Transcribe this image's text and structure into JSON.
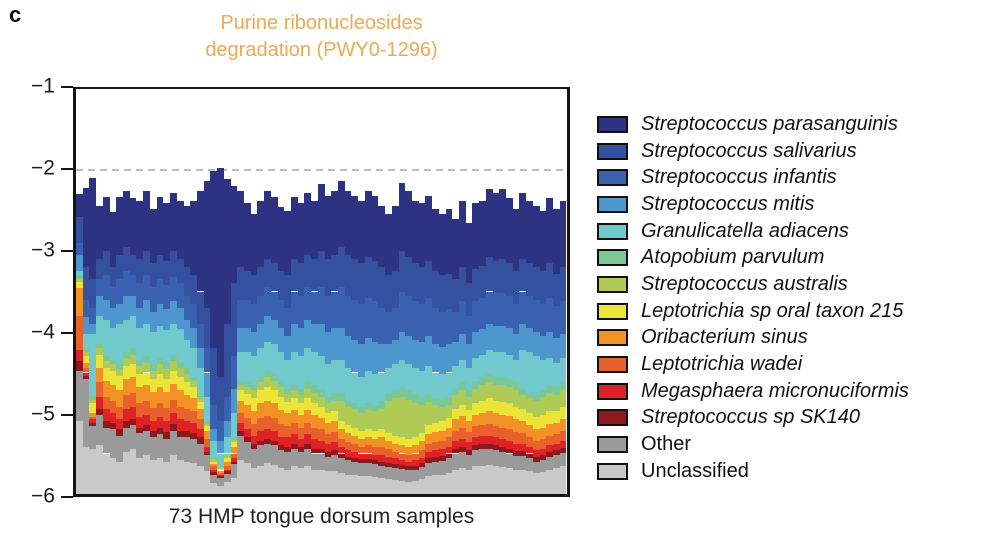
{
  "panel_label": "c",
  "title": {
    "line1": "Purine ribonucleosides",
    "line2": "degradation (PWY0-1296)",
    "color": "#F0A952"
  },
  "xlabel": "73 HMP tongue dorsum samples",
  "chart_data": {
    "type": "bar",
    "stacked": true,
    "title": "Purine ribonucleosides degradation (PWY0-1296)",
    "xlabel": "73 HMP tongue dorsum samples",
    "ylabel": "",
    "ylim": [
      -6,
      -1
    ],
    "yticks": [
      -1,
      -2,
      -3,
      -4,
      -5,
      -6
    ],
    "ytick_labels": [
      "−1",
      "−2",
      "−3",
      "−4",
      "−5",
      "−6"
    ],
    "grid": false,
    "reference_line_y": -2,
    "legend_position": "right",
    "n_samples": 73,
    "series": [
      {
        "name": "Streptococcus parasanguinis",
        "color": "#2D3282",
        "italic": true
      },
      {
        "name": "Streptococcus salivarius",
        "color": "#33519E",
        "italic": true
      },
      {
        "name": "Streptococcus infantis",
        "color": "#3A61AF",
        "italic": true
      },
      {
        "name": "Streptococcus mitis",
        "color": "#4E96CE",
        "italic": true
      },
      {
        "name": "Granulicatella adiacens",
        "color": "#6FC9CD",
        "italic": true
      },
      {
        "name": "Atopobium parvulum",
        "color": "#7BC795",
        "italic": true
      },
      {
        "name": "Streptococcus australis",
        "color": "#AFCA55",
        "italic": true
      },
      {
        "name": "Leptotrichia sp oral taxon 215",
        "color": "#EDE438",
        "italic": true
      },
      {
        "name": "Oribacterium sinus",
        "color": "#F29126",
        "italic": true
      },
      {
        "name": "Leptotrichia wadei",
        "color": "#E8612C",
        "italic": true
      },
      {
        "name": "Megasphaera micronuciformis",
        "color": "#DE2228",
        "italic": true
      },
      {
        "name": "Streptococcus sp SK140",
        "color": "#8E191C",
        "italic": true
      },
      {
        "name": "Other",
        "color": "#9A9A9A",
        "italic": false
      },
      {
        "name": "Unclassified",
        "color": "#C9C9C9",
        "italic": false
      }
    ],
    "samples_bounds_desc": "Per sample: [bar top (log10 abundance), then cumulative lower boundary of each of the first 13 series in legend order]; the 14th series (Unclassified) extends from the last boundary down to -6.",
    "samples": [
      [
        -2.3,
        -2.58,
        -2.9,
        -3.05,
        -3.25,
        -3.3,
        -3.34,
        -3.38,
        -3.46,
        -3.8,
        -4.22,
        -4.36,
        -4.48,
        -5.1
      ],
      [
        -2.22,
        -3.2,
        -3.6,
        -3.82,
        -4.02,
        -4.2,
        -4.25,
        -4.3,
        -4.38,
        -4.45,
        -4.5,
        -4.54,
        -4.58,
        -5.42
      ],
      [
        -2.1,
        -3.35,
        -3.7,
        -3.9,
        -4.02,
        -4.79,
        -4.84,
        -4.88,
        -5.0,
        -5.05,
        -5.08,
        -5.12,
        -5.16,
        -5.45
      ],
      [
        -2.44,
        -3.1,
        -3.35,
        -3.55,
        -3.8,
        -4.15,
        -4.2,
        -4.28,
        -4.45,
        -4.62,
        -4.8,
        -4.95,
        -5.02,
        -5.4
      ],
      [
        -2.33,
        -3.0,
        -3.3,
        -3.6,
        -3.85,
        -4.3,
        -4.36,
        -4.44,
        -4.6,
        -4.8,
        -4.95,
        -5.1,
        -5.18,
        -5.5
      ],
      [
        -2.52,
        -3.2,
        -3.45,
        -3.7,
        -3.95,
        -4.35,
        -4.4,
        -4.48,
        -4.65,
        -4.85,
        -5.0,
        -5.12,
        -5.2,
        -5.55
      ],
      [
        -2.33,
        -3.05,
        -3.35,
        -3.65,
        -3.9,
        -4.4,
        -4.46,
        -4.54,
        -4.72,
        -4.92,
        -5.08,
        -5.2,
        -5.28,
        -5.6
      ],
      [
        -2.26,
        -2.95,
        -3.25,
        -3.55,
        -3.85,
        -4.25,
        -4.32,
        -4.42,
        -4.58,
        -4.78,
        -4.95,
        -5.1,
        -5.18,
        -5.48
      ],
      [
        -2.34,
        -3.05,
        -3.3,
        -3.55,
        -3.8,
        -4.2,
        -4.28,
        -4.4,
        -4.55,
        -4.75,
        -4.92,
        -5.08,
        -5.15,
        -5.45
      ],
      [
        -2.38,
        -3.1,
        -3.4,
        -3.7,
        -3.95,
        -4.35,
        -4.42,
        -4.52,
        -4.68,
        -4.88,
        -5.05,
        -5.18,
        -5.25,
        -5.55
      ],
      [
        -2.26,
        -3.0,
        -3.3,
        -3.6,
        -3.9,
        -4.3,
        -4.38,
        -4.5,
        -4.65,
        -4.85,
        -5.02,
        -5.15,
        -5.22,
        -5.52
      ],
      [
        -2.48,
        -3.15,
        -3.45,
        -3.75,
        -4.0,
        -4.4,
        -4.48,
        -4.58,
        -4.74,
        -4.94,
        -5.1,
        -5.22,
        -5.3,
        -5.58
      ],
      [
        -2.33,
        -3.05,
        -3.35,
        -3.65,
        -3.92,
        -4.32,
        -4.4,
        -4.52,
        -4.68,
        -4.88,
        -5.05,
        -5.18,
        -5.26,
        -5.55
      ],
      [
        -2.41,
        -3.12,
        -3.42,
        -3.72,
        -3.98,
        -4.38,
        -4.46,
        -4.58,
        -4.74,
        -4.94,
        -5.1,
        -5.24,
        -5.32,
        -5.6
      ],
      [
        -2.28,
        -3.0,
        -3.32,
        -3.62,
        -3.9,
        -4.28,
        -4.36,
        -4.48,
        -4.64,
        -4.84,
        -5.0,
        -5.14,
        -5.22,
        -5.52
      ],
      [
        -2.38,
        -3.1,
        -3.4,
        -3.7,
        -3.96,
        -4.36,
        -4.44,
        -4.56,
        -4.72,
        -4.92,
        -5.08,
        -5.22,
        -5.3,
        -5.58
      ],
      [
        -2.44,
        -3.2,
        -3.55,
        -3.85,
        -4.1,
        -4.45,
        -4.52,
        -4.62,
        -4.78,
        -4.95,
        -5.1,
        -5.22,
        -5.3,
        -5.6
      ],
      [
        -2.38,
        -3.3,
        -3.65,
        -3.95,
        -4.2,
        -4.55,
        -4.6,
        -4.68,
        -4.82,
        -4.98,
        -5.12,
        -5.25,
        -5.32,
        -5.62
      ],
      [
        -2.26,
        -3.5,
        -3.9,
        -4.2,
        -4.45,
        -4.75,
        -4.8,
        -4.86,
        -4.95,
        -5.08,
        -5.2,
        -5.3,
        -5.38,
        -5.65
      ],
      [
        -2.13,
        -3.7,
        -4.2,
        -4.5,
        -4.8,
        -5.1,
        -5.13,
        -5.16,
        -5.22,
        -5.32,
        -5.42,
        -5.48,
        -5.52,
        -5.72
      ],
      [
        -2.01,
        -4.2,
        -4.9,
        -5.2,
        -5.35,
        -5.55,
        -5.57,
        -5.6,
        -5.63,
        -5.66,
        -5.7,
        -5.73,
        -5.76,
        -5.86
      ],
      [
        -1.98,
        -4.55,
        -5.1,
        -5.35,
        -5.5,
        -5.65,
        -5.67,
        -5.69,
        -5.71,
        -5.74,
        -5.76,
        -5.78,
        -5.8,
        -5.9
      ],
      [
        -2.11,
        -3.9,
        -4.8,
        -5.1,
        -5.3,
        -5.5,
        -5.52,
        -5.55,
        -5.6,
        -5.65,
        -5.7,
        -5.72,
        -5.75,
        -5.85
      ],
      [
        -2.2,
        -3.4,
        -4.3,
        -4.7,
        -5.0,
        -5.3,
        -5.33,
        -5.36,
        -5.42,
        -5.5,
        -5.56,
        -5.6,
        -5.63,
        -5.8
      ],
      [
        -2.26,
        -3.2,
        -3.6,
        -3.95,
        -4.25,
        -4.6,
        -4.65,
        -4.72,
        -4.85,
        -5.0,
        -5.12,
        -5.22,
        -5.28,
        -5.58
      ],
      [
        -2.41,
        -3.25,
        -3.6,
        -3.95,
        -4.25,
        -4.62,
        -4.68,
        -4.76,
        -4.9,
        -5.06,
        -5.2,
        -5.3,
        -5.36,
        -5.62
      ],
      [
        -2.54,
        -3.3,
        -3.65,
        -4.0,
        -4.3,
        -4.65,
        -4.72,
        -4.82,
        -4.98,
        -5.14,
        -5.28,
        -5.38,
        -5.44,
        -5.68
      ],
      [
        -2.38,
        -3.2,
        -3.55,
        -3.9,
        -4.2,
        -4.55,
        -4.62,
        -4.72,
        -4.88,
        -5.06,
        -5.22,
        -5.34,
        -5.4,
        -5.65
      ],
      [
        -2.26,
        -3.1,
        -3.45,
        -3.8,
        -4.12,
        -4.48,
        -4.56,
        -4.68,
        -4.85,
        -5.04,
        -5.2,
        -5.32,
        -5.38,
        -5.62
      ],
      [
        -2.33,
        -3.15,
        -3.5,
        -3.85,
        -4.15,
        -4.52,
        -4.6,
        -4.72,
        -4.88,
        -5.06,
        -5.22,
        -5.34,
        -5.4,
        -5.64
      ],
      [
        -2.46,
        -3.25,
        -3.6,
        -3.95,
        -4.25,
        -4.6,
        -4.68,
        -4.8,
        -4.96,
        -5.14,
        -5.3,
        -5.4,
        -5.46,
        -5.68
      ],
      [
        -2.5,
        -3.3,
        -3.7,
        -4.05,
        -4.35,
        -4.7,
        -4.76,
        -4.86,
        -5.0,
        -5.16,
        -5.3,
        -5.42,
        -5.48,
        -5.7
      ],
      [
        -2.33,
        -3.1,
        -3.5,
        -3.9,
        -4.25,
        -4.65,
        -4.72,
        -4.82,
        -4.96,
        -5.12,
        -5.26,
        -5.38,
        -5.44,
        -5.66
      ],
      [
        -2.41,
        -3.15,
        -3.55,
        -3.95,
        -4.3,
        -4.7,
        -4.78,
        -4.88,
        -5.02,
        -5.18,
        -5.32,
        -5.42,
        -5.48,
        -5.68
      ],
      [
        -2.29,
        -3.05,
        -3.45,
        -3.85,
        -4.2,
        -4.6,
        -4.7,
        -4.82,
        -4.96,
        -5.12,
        -5.26,
        -5.38,
        -5.44,
        -5.66
      ],
      [
        -2.38,
        -3.1,
        -3.5,
        -3.9,
        -4.25,
        -4.65,
        -4.75,
        -4.88,
        -5.02,
        -5.18,
        -5.32,
        -5.44,
        -5.5,
        -5.7
      ],
      [
        -2.17,
        -3.0,
        -3.45,
        -3.9,
        -4.3,
        -4.7,
        -4.8,
        -4.92,
        -5.06,
        -5.2,
        -5.34,
        -5.44,
        -5.5,
        -5.7
      ],
      [
        -2.32,
        -3.1,
        -3.55,
        -4.0,
        -4.4,
        -4.8,
        -4.88,
        -5.0,
        -5.12,
        -5.26,
        -5.38,
        -5.48,
        -5.54,
        -5.72
      ],
      [
        -2.26,
        -3.05,
        -3.5,
        -3.95,
        -4.35,
        -4.75,
        -4.85,
        -4.98,
        -5.1,
        -5.24,
        -5.36,
        -5.46,
        -5.52,
        -5.72
      ],
      [
        -2.13,
        -2.95,
        -3.45,
        -3.95,
        -4.35,
        -4.75,
        -4.85,
        -5.1,
        -5.2,
        -5.32,
        -5.42,
        -5.5,
        -5.55,
        -5.74
      ],
      [
        -2.26,
        -3.05,
        -3.55,
        -4.05,
        -4.45,
        -4.85,
        -4.92,
        -5.15,
        -5.25,
        -5.36,
        -5.46,
        -5.54,
        -5.58,
        -5.76
      ],
      [
        -2.32,
        -3.1,
        -3.6,
        -4.1,
        -4.5,
        -4.88,
        -4.95,
        -5.18,
        -5.28,
        -5.38,
        -5.48,
        -5.55,
        -5.6,
        -5.77
      ],
      [
        -2.38,
        -3.15,
        -3.65,
        -4.15,
        -4.55,
        -4.92,
        -5.0,
        -5.22,
        -5.32,
        -5.42,
        -5.5,
        -5.57,
        -5.62,
        -5.78
      ],
      [
        -2.26,
        -3.08,
        -3.58,
        -4.08,
        -4.48,
        -4.88,
        -4.96,
        -5.2,
        -5.3,
        -5.4,
        -5.5,
        -5.57,
        -5.62,
        -5.78
      ],
      [
        -2.32,
        -3.12,
        -3.62,
        -4.12,
        -4.52,
        -4.9,
        -4.98,
        -5.22,
        -5.32,
        -5.42,
        -5.52,
        -5.58,
        -5.63,
        -5.79
      ],
      [
        -2.44,
        -3.2,
        -3.7,
        -4.15,
        -4.5,
        -4.85,
        -4.95,
        -5.2,
        -5.3,
        -5.42,
        -5.52,
        -5.6,
        -5.65,
        -5.8
      ],
      [
        -2.54,
        -3.3,
        -3.75,
        -4.15,
        -4.45,
        -4.75,
        -4.85,
        -5.25,
        -5.35,
        -5.45,
        -5.54,
        -5.62,
        -5.67,
        -5.82
      ],
      [
        -2.44,
        -3.25,
        -3.7,
        -4.1,
        -4.4,
        -4.7,
        -4.82,
        -5.28,
        -5.38,
        -5.48,
        -5.56,
        -5.63,
        -5.68,
        -5.83
      ],
      [
        -2.16,
        -3.0,
        -3.5,
        -4.0,
        -4.35,
        -4.68,
        -4.8,
        -5.3,
        -5.4,
        -5.5,
        -5.58,
        -5.64,
        -5.69,
        -5.84
      ],
      [
        -2.26,
        -3.08,
        -3.55,
        -4.05,
        -4.4,
        -4.72,
        -4.84,
        -5.32,
        -5.42,
        -5.52,
        -5.6,
        -5.66,
        -5.7,
        -5.85
      ],
      [
        -2.38,
        -3.15,
        -3.62,
        -4.1,
        -4.45,
        -4.76,
        -4.88,
        -5.3,
        -5.4,
        -5.5,
        -5.58,
        -5.65,
        -5.7,
        -5.84
      ],
      [
        -2.41,
        -3.2,
        -3.65,
        -4.12,
        -4.48,
        -4.8,
        -4.9,
        -5.25,
        -5.35,
        -5.46,
        -5.55,
        -5.62,
        -5.67,
        -5.82
      ],
      [
        -2.32,
        -3.12,
        -3.58,
        -4.05,
        -4.42,
        -4.76,
        -4.86,
        -5.15,
        -5.26,
        -5.38,
        -5.48,
        -5.56,
        -5.62,
        -5.78
      ],
      [
        -2.48,
        -3.25,
        -3.7,
        -4.15,
        -4.5,
        -4.82,
        -4.9,
        -5.12,
        -5.24,
        -5.36,
        -5.46,
        -5.54,
        -5.6,
        -5.77
      ],
      [
        -2.54,
        -3.3,
        -3.75,
        -4.18,
        -4.52,
        -4.84,
        -4.92,
        -5.1,
        -5.22,
        -5.34,
        -5.45,
        -5.53,
        -5.59,
        -5.76
      ],
      [
        -2.48,
        -3.28,
        -3.72,
        -4.15,
        -4.5,
        -4.82,
        -4.9,
        -5.06,
        -5.18,
        -5.3,
        -5.42,
        -5.5,
        -5.56,
        -5.74
      ],
      [
        -2.6,
        -3.35,
        -3.75,
        -4.12,
        -4.42,
        -4.7,
        -4.78,
        -4.95,
        -5.08,
        -5.22,
        -5.35,
        -5.44,
        -5.5,
        -5.7
      ],
      [
        -2.38,
        -3.2,
        -3.62,
        -4.02,
        -4.35,
        -4.62,
        -4.72,
        -4.9,
        -5.04,
        -5.18,
        -5.32,
        -5.42,
        -5.48,
        -5.68
      ],
      [
        -2.66,
        -3.4,
        -3.8,
        -4.15,
        -4.45,
        -4.72,
        -4.8,
        -4.96,
        -5.1,
        -5.24,
        -5.36,
        -5.46,
        -5.52,
        -5.7
      ],
      [
        -2.41,
        -3.22,
        -3.62,
        -4.0,
        -4.32,
        -4.6,
        -4.7,
        -4.88,
        -5.02,
        -5.16,
        -5.3,
        -5.4,
        -5.46,
        -5.66
      ],
      [
        -2.38,
        -3.18,
        -3.58,
        -3.96,
        -4.28,
        -4.56,
        -4.66,
        -4.85,
        -5.0,
        -5.15,
        -5.28,
        -5.38,
        -5.45,
        -5.65
      ],
      [
        -2.23,
        -3.08,
        -3.5,
        -3.9,
        -4.22,
        -4.52,
        -4.62,
        -4.82,
        -4.98,
        -5.14,
        -5.28,
        -5.38,
        -5.44,
        -5.64
      ],
      [
        -2.29,
        -3.12,
        -3.52,
        -3.92,
        -4.25,
        -4.55,
        -4.65,
        -4.85,
        -5.0,
        -5.16,
        -5.3,
        -5.4,
        -5.46,
        -5.66
      ],
      [
        -2.23,
        -3.1,
        -3.52,
        -3.92,
        -4.25,
        -4.55,
        -4.66,
        -4.86,
        -5.02,
        -5.18,
        -5.32,
        -5.42,
        -5.48,
        -5.67
      ],
      [
        -2.34,
        -3.15,
        -3.55,
        -3.95,
        -4.28,
        -4.58,
        -4.68,
        -4.88,
        -5.04,
        -5.2,
        -5.34,
        -5.44,
        -5.5,
        -5.68
      ],
      [
        -2.48,
        -3.25,
        -3.65,
        -4.02,
        -4.34,
        -4.62,
        -4.72,
        -4.92,
        -5.08,
        -5.24,
        -5.38,
        -5.47,
        -5.53,
        -5.7
      ],
      [
        -2.29,
        -3.1,
        -3.5,
        -3.9,
        -4.22,
        -4.7,
        -4.78,
        -4.95,
        -5.1,
        -5.25,
        -5.38,
        -5.47,
        -5.53,
        -5.7
      ],
      [
        -2.38,
        -3.15,
        -3.55,
        -3.95,
        -4.25,
        -4.75,
        -4.82,
        -5.0,
        -5.15,
        -5.3,
        -5.42,
        -5.5,
        -5.56,
        -5.72
      ],
      [
        -2.44,
        -3.2,
        -3.6,
        -4.0,
        -4.3,
        -4.78,
        -4.85,
        -5.05,
        -5.2,
        -5.34,
        -5.46,
        -5.54,
        -5.6,
        -5.74
      ],
      [
        -2.5,
        -3.25,
        -3.65,
        -4.05,
        -4.35,
        -4.72,
        -4.8,
        -5.02,
        -5.18,
        -5.32,
        -5.44,
        -5.52,
        -5.58,
        -5.73
      ],
      [
        -2.34,
        -3.15,
        -3.58,
        -4.0,
        -4.32,
        -4.65,
        -4.75,
        -4.98,
        -5.14,
        -5.28,
        -5.4,
        -5.48,
        -5.54,
        -5.7
      ],
      [
        -2.48,
        -3.28,
        -3.68,
        -4.08,
        -4.38,
        -4.68,
        -4.78,
        -4.98,
        -5.12,
        -5.26,
        -5.38,
        -5.46,
        -5.52,
        -5.68
      ],
      [
        -2.38,
        -3.2,
        -3.62,
        -4.02,
        -4.32,
        -4.62,
        -4.72,
        -4.92,
        -5.08,
        -5.22,
        -5.34,
        -5.43,
        -5.49,
        -5.66
      ]
    ]
  }
}
